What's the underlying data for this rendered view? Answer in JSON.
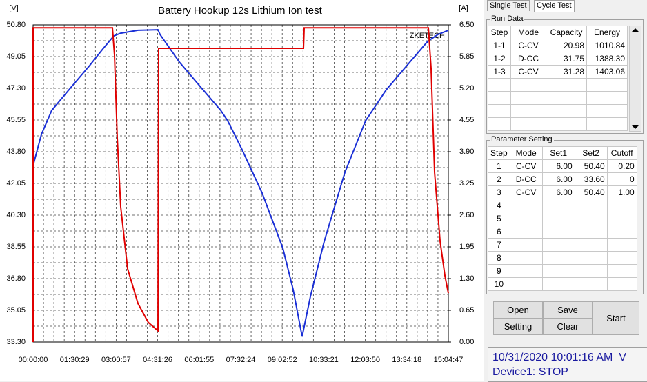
{
  "chart_data": {
    "type": "line",
    "title": "Battery Hookup 12s Lithium Ion test",
    "y_label": "[V]",
    "y2_label": "[A]",
    "annotation": "ZKETECH",
    "xlim": [
      0,
      54287
    ],
    "xticks": [
      {
        "value": 0,
        "label": "00:00:00"
      },
      {
        "value": 5429,
        "label": "01:30:29"
      },
      {
        "value": 10857,
        "label": "03:00:57"
      },
      {
        "value": 16286,
        "label": "04:31:26"
      },
      {
        "value": 21715,
        "label": "06:01:55"
      },
      {
        "value": 27144,
        "label": "07:32:24"
      },
      {
        "value": 32572,
        "label": "09:02:52"
      },
      {
        "value": 38001,
        "label": "10:33:21"
      },
      {
        "value": 43430,
        "label": "12:03:50"
      },
      {
        "value": 48858,
        "label": "13:34:18"
      },
      {
        "value": 54287,
        "label": "15:04:47"
      }
    ],
    "ylim": [
      33.3,
      50.8
    ],
    "yticks": [
      {
        "value": 33.3,
        "label": "33.30"
      },
      35.05,
      {
        "value": 36.8,
        "label": "36.80"
      },
      38.55,
      {
        "value": 40.3,
        "label": "40.30"
      },
      42.05,
      {
        "value": 43.8,
        "label": "43.80"
      },
      45.55,
      {
        "value": 47.3,
        "label": "47.30"
      },
      49.05,
      {
        "value": 50.8,
        "label": "50.80"
      }
    ],
    "y2lim": [
      0,
      6.5
    ],
    "y2ticks": [
      {
        "value": 0,
        "label": "0.00"
      },
      0.65,
      {
        "value": 1.3,
        "label": "1.30"
      },
      1.95,
      {
        "value": 2.6,
        "label": "2.60"
      },
      3.25,
      {
        "value": 3.9,
        "label": "3.90"
      },
      4.55,
      {
        "value": 5.2,
        "label": "5.20"
      },
      5.85,
      {
        "value": 6.5,
        "label": "6.50"
      }
    ],
    "grid": true,
    "series": [
      {
        "color": "#1a2fd6",
        "x": [
          0,
          1082,
          2435,
          4689,
          7395,
          9198,
          10551,
          11453,
          13707,
          16323,
          16593,
          19118,
          21823,
          24529,
          25431,
          27234,
          29940,
          32645,
          33998,
          35171,
          36253,
          38057,
          40762,
          43468,
          46173,
          48879,
          51584,
          52937,
          54287
        ],
        "values": [
          43.04,
          44.75,
          46.08,
          47.22,
          48.56,
          49.51,
          50.19,
          50.34,
          50.5,
          50.53,
          50.27,
          48.75,
          47.41,
          46.08,
          45.51,
          43.99,
          41.52,
          38.48,
          36.19,
          33.6,
          35.81,
          38.85,
          42.66,
          45.51,
          47.22,
          48.56,
          49.89,
          50.27,
          50.5
        ]
      },
      {
        "color": "#e00000",
        "axis": "y2",
        "x": [
          0,
          0,
          10371,
          10641,
          11002,
          11453,
          12355,
          13707,
          15060,
          16323,
          16413,
          35351,
          35441,
          51674,
          52034,
          52485,
          53206,
          53837,
          54287
        ],
        "values": [
          0,
          6.44,
          6.44,
          5.88,
          4.18,
          2.77,
          1.5,
          0.79,
          0.4,
          0.23,
          6.02,
          6.02,
          6.44,
          6.44,
          5.6,
          3.48,
          2.07,
          1.36,
          1.0
        ]
      }
    ]
  },
  "tabs": [
    "Single Test",
    "Cycle Test"
  ],
  "run_data": {
    "title": "Run Data",
    "columns": [
      "Step",
      "Mode",
      "Capacity",
      "Energy"
    ],
    "rows": [
      [
        "1-1",
        "C-CV",
        "20.98",
        "1010.84"
      ],
      [
        "1-2",
        "D-CC",
        "31.75",
        "1388.30"
      ],
      [
        "1-3",
        "C-CV",
        "31.28",
        "1403.06"
      ]
    ]
  },
  "parameter_setting": {
    "title": "Parameter Setting",
    "columns": [
      "Step",
      "Mode",
      "Set1",
      "Set2",
      "Cutoff"
    ],
    "rows": [
      [
        "1",
        "C-CV",
        "6.00",
        "50.40",
        "0.20"
      ],
      [
        "2",
        "D-CC",
        "6.00",
        "33.60",
        "0"
      ],
      [
        "3",
        "C-CV",
        "6.00",
        "50.40",
        "1.00"
      ],
      [
        "4"
      ],
      [
        "5"
      ],
      [
        "6"
      ],
      [
        "7"
      ],
      [
        "8"
      ],
      [
        "9"
      ],
      [
        "10"
      ]
    ]
  },
  "buttons": [
    "Open",
    "Save",
    "Setting",
    "Clear",
    "Start"
  ],
  "status": {
    "datetime": "10/31/2020 10:01:16 AM  V",
    "device": "Device1: STOP"
  }
}
